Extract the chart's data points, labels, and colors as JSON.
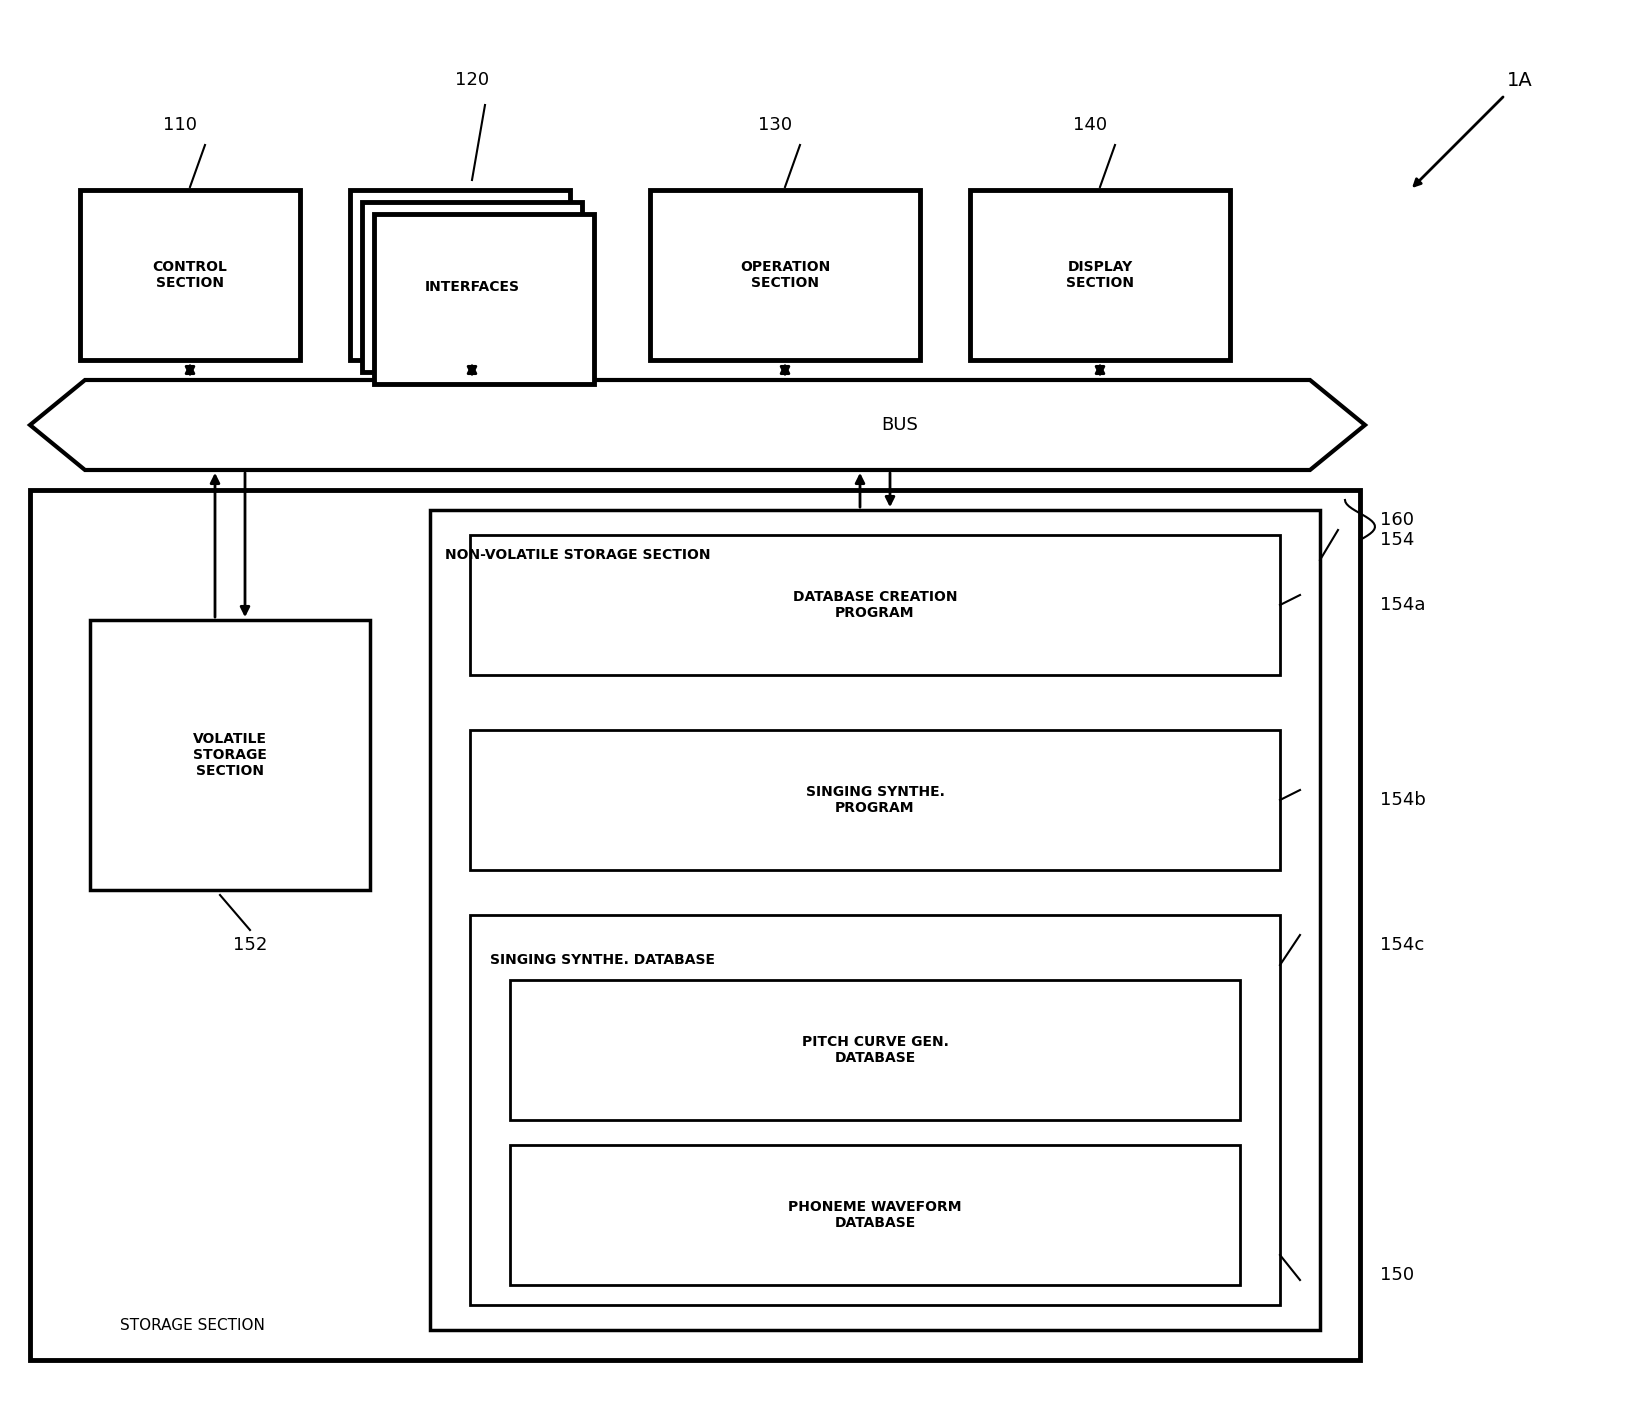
{
  "bg_color": "#ffffff",
  "fig_width": 16.36,
  "fig_height": 14.1,
  "label_1A": "1A",
  "label_110": "110",
  "label_120": "120",
  "label_130": "130",
  "label_140": "140",
  "label_152": "152",
  "label_154": "154",
  "label_154a": "154a",
  "label_154b": "154b",
  "label_154c": "154c",
  "label_160": "160",
  "label_150": "150",
  "text_control": "CONTROL\nSECTION",
  "text_interfaces": "INTERFACES",
  "text_operation": "OPERATION\nSECTION",
  "text_display": "DISPLAY\nSECTION",
  "text_bus": "BUS",
  "text_volatile": "VOLATILE\nSTORAGE\nSECTION",
  "text_nonvolatile": "NON-VOLATILE STORAGE SECTION",
  "text_db_creation": "DATABASE CREATION\nPROGRAM",
  "text_singing_synthe": "SINGING SYNTHE.\nPROGRAM",
  "text_singing_db": "SINGING SYNTHE. DATABASE",
  "text_pitch": "PITCH CURVE GEN.\nDATABASE",
  "text_phoneme": "PHONEME WAVEFORM\nDATABASE",
  "text_storage": "STORAGE SECTION"
}
